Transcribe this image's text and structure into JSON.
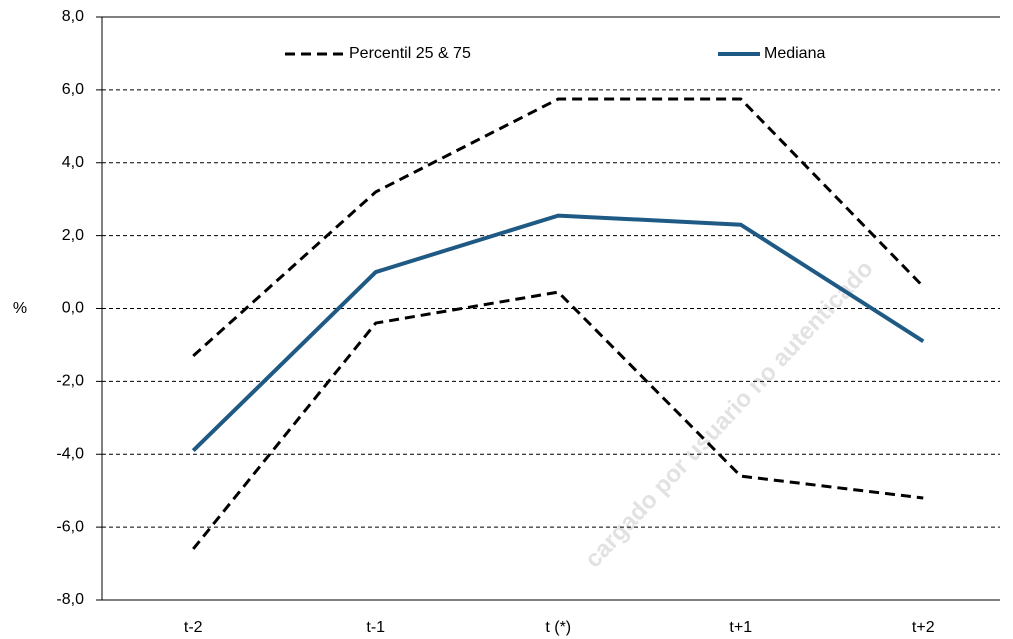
{
  "chart_data": {
    "type": "line",
    "y_label": "%",
    "watermark": "cargado por usuario no autenticado",
    "categories": [
      "t-2",
      "t-1",
      "t (*)",
      "t+1",
      "t+2"
    ],
    "series": [
      {
        "name": "Percentil 25 & 75",
        "color": "#000000",
        "dashed": true,
        "values": [
          -1.3,
          3.2,
          5.75,
          5.75,
          0.6
        ]
      },
      {
        "color": "#000000",
        "dashed": true,
        "values": [
          -6.6,
          -0.4,
          0.45,
          -4.6,
          -5.2
        ]
      },
      {
        "name": "Mediana",
        "color": "#1f5a85",
        "dashed": false,
        "values": [
          -3.9,
          1.0,
          2.55,
          2.3,
          -0.9
        ]
      }
    ],
    "ylim": [
      -8,
      8
    ],
    "yticks": [
      {
        "value": -8,
        "label": "-8,0"
      },
      {
        "value": -6,
        "label": "-6,0"
      },
      {
        "value": -4,
        "label": "-4,0"
      },
      {
        "value": -2,
        "label": "-2,0"
      },
      {
        "value": 0,
        "label": "0,0"
      },
      {
        "value": 2,
        "label": "2,0"
      },
      {
        "value": 4,
        "label": "4,0"
      },
      {
        "value": 6,
        "label": "6,0"
      },
      {
        "value": 8,
        "label": "8,0"
      }
    ],
    "grid": true
  }
}
